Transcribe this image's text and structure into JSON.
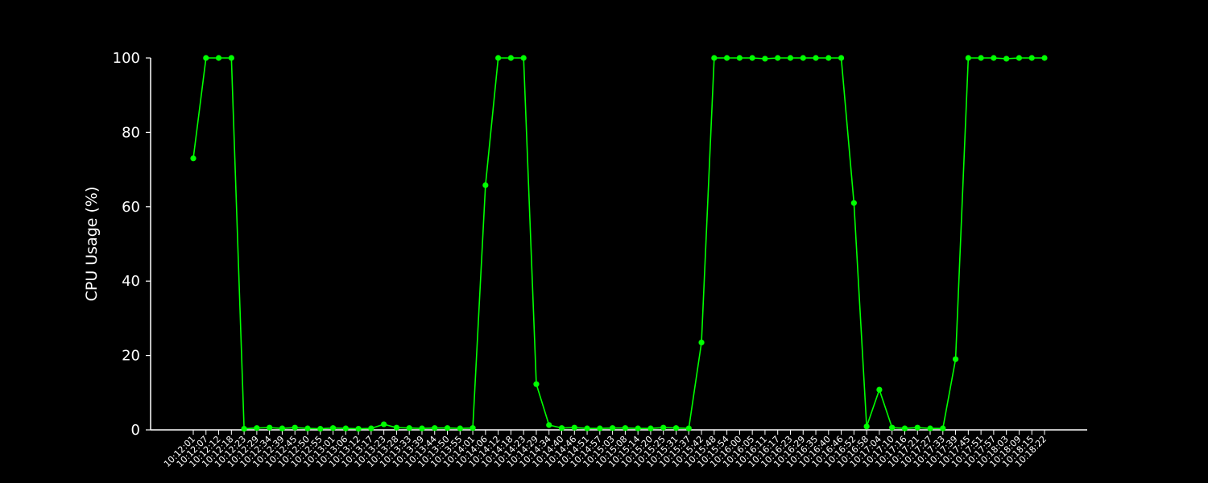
{
  "chart_data": {
    "type": "line",
    "title": "",
    "xlabel": "",
    "ylabel": "CPU Usage (%)",
    "ylim": [
      0,
      100
    ],
    "yticks": [
      0,
      20,
      40,
      60,
      80,
      100
    ],
    "grid": false,
    "legend": "none",
    "colors": {
      "background": "#000000",
      "line": "#00ff00",
      "axes": "#ffffff",
      "text": "#ffffff"
    },
    "x": [
      "10:12:01",
      "10:12:07",
      "10:12:12",
      "10:12:18",
      "10:12:23",
      "10:12:29",
      "10:12:34",
      "10:12:39",
      "10:12:45",
      "10:12:50",
      "10:12:55",
      "10:13:01",
      "10:13:06",
      "10:13:12",
      "10:13:17",
      "10:13:23",
      "10:13:28",
      "10:13:33",
      "10:13:39",
      "10:13:44",
      "10:13:50",
      "10:13:55",
      "10:14:01",
      "10:14:06",
      "10:14:12",
      "10:14:18",
      "10:14:23",
      "10:14:29",
      "10:14:34",
      "10:14:40",
      "10:14:46",
      "10:14:51",
      "10:14:57",
      "10:15:03",
      "10:15:08",
      "10:15:14",
      "10:15:20",
      "10:15:25",
      "10:15:31",
      "10:15:37",
      "10:15:42",
      "10:15:48",
      "10:15:54",
      "10:16:00",
      "10:16:05",
      "10:16:11",
      "10:16:17",
      "10:16:23",
      "10:16:29",
      "10:16:35",
      "10:16:40",
      "10:16:46",
      "10:16:52",
      "10:16:58",
      "10:17:04",
      "10:17:10",
      "10:17:16",
      "10:17:21",
      "10:17:27",
      "10:17:33",
      "10:17:39",
      "10:17:45",
      "10:17:51",
      "10:17:57",
      "10:18:03",
      "10:18:09",
      "10:18:15",
      "10:18:22"
    ],
    "series": [
      {
        "values": [
          73,
          100,
          100,
          100,
          0.3,
          0.5,
          0.6,
          0.4,
          0.6,
          0.4,
          0.3,
          0.5,
          0.4,
          0.3,
          0.4,
          1.5,
          0.6,
          0.5,
          0.4,
          0.5,
          0.5,
          0.4,
          0.5,
          65.8,
          100,
          100,
          100,
          12.3,
          1.3,
          0.5,
          0.6,
          0.4,
          0.4,
          0.5,
          0.5,
          0.4,
          0.4,
          0.6,
          0.5,
          0.4,
          23.5,
          100,
          100,
          100,
          100,
          99.8,
          100,
          100,
          100,
          100,
          100,
          100,
          61,
          0.9,
          10.8,
          0.6,
          0.4,
          0.6,
          0.4,
          0.4,
          19,
          100,
          100,
          100,
          99.8,
          100,
          100,
          100
        ]
      }
    ]
  }
}
